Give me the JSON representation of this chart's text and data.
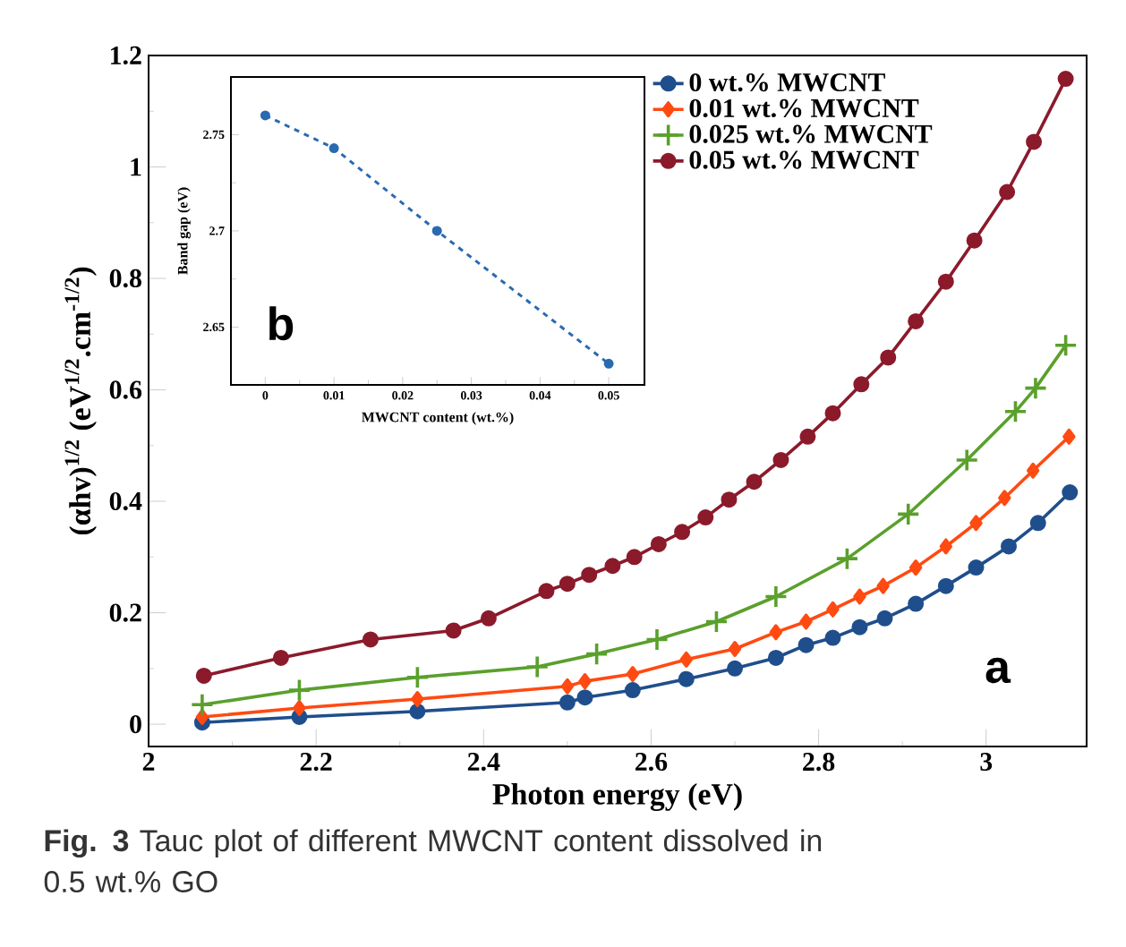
{
  "chart_data": [
    {
      "type": "line",
      "xlabel": "Photon energy (eV)",
      "ylabel": "(αhv)$^{1/2}$ (eV$^{1/2}$.cm$^{-1/2}$)",
      "xlim": [
        2,
        3.12
      ],
      "ylim": [
        -0.04,
        1.2
      ],
      "xticks": [
        2,
        2.2,
        2.4,
        2.6,
        2.8,
        3
      ],
      "yticks": [
        0,
        0.2,
        0.4,
        0.6,
        0.8,
        1,
        1.2
      ],
      "legend": "top right",
      "grid": false,
      "annotations": [
        "a",
        "**Fig. 3** Tauc plot of different MWCNT content dissolved in 0.5 wt.% GO"
      ],
      "series": [
        {
          "name": "0 wt.% MWCNT",
          "color": "#1f4e8c",
          "marker": "circle",
          "x": [
            2.064,
            2.18,
            2.321,
            2.5,
            2.521,
            2.578,
            2.642,
            2.7,
            2.749,
            2.785,
            2.817,
            2.849,
            2.879,
            2.916,
            2.952,
            2.988,
            3.027,
            3.062,
            3.1
          ],
          "values": [
            0.003,
            0.013,
            0.023,
            0.039,
            0.048,
            0.061,
            0.081,
            0.1,
            0.119,
            0.142,
            0.155,
            0.174,
            0.19,
            0.216,
            0.248,
            0.281,
            0.319,
            0.361,
            0.416
          ]
        },
        {
          "name": "0.01 wt.% MWCNT",
          "color": "#ff4a12",
          "marker": "diamond",
          "x": [
            2.064,
            2.18,
            2.321,
            2.5,
            2.521,
            2.578,
            2.642,
            2.7,
            2.749,
            2.785,
            2.817,
            2.849,
            2.877,
            2.916,
            2.952,
            2.988,
            3.022,
            3.056,
            3.099
          ],
          "values": [
            0.013,
            0.029,
            0.045,
            0.068,
            0.077,
            0.09,
            0.116,
            0.135,
            0.165,
            0.184,
            0.206,
            0.229,
            0.248,
            0.281,
            0.319,
            0.361,
            0.406,
            0.455,
            0.516
          ]
        },
        {
          "name": "0.025 wt.% MWCNT",
          "color": "#5aa02c",
          "marker": "cross",
          "x": [
            2.064,
            2.18,
            2.321,
            2.464,
            2.535,
            2.607,
            2.678,
            2.749,
            2.834,
            2.907,
            2.977,
            3.035,
            3.059,
            3.095
          ],
          "values": [
            0.035,
            0.061,
            0.084,
            0.103,
            0.126,
            0.152,
            0.184,
            0.229,
            0.297,
            0.377,
            0.474,
            0.561,
            0.603,
            0.68
          ]
        },
        {
          "name": "0.05 wt.% MWCNT",
          "color": "#8b1a2b",
          "marker": "circle",
          "x": [
            2.066,
            2.158,
            2.265,
            2.364,
            2.406,
            2.475,
            2.5,
            2.526,
            2.554,
            2.58,
            2.609,
            2.637,
            2.665,
            2.693,
            2.723,
            2.755,
            2.787,
            2.817,
            2.851,
            2.883,
            2.916,
            2.952,
            2.986,
            3.025,
            3.057,
            3.095
          ],
          "values": [
            0.087,
            0.119,
            0.152,
            0.168,
            0.19,
            0.239,
            0.252,
            0.268,
            0.284,
            0.3,
            0.323,
            0.345,
            0.371,
            0.403,
            0.435,
            0.474,
            0.516,
            0.558,
            0.61,
            0.658,
            0.723,
            0.794,
            0.868,
            0.955,
            1.045,
            1.158
          ]
        }
      ]
    },
    {
      "type": "line",
      "xlabel": "MWCNT content (wt.%)",
      "ylabel": "Band gap (eV)",
      "xlim": [
        -0.005,
        0.0552
      ],
      "ylim": [
        2.62,
        2.78
      ],
      "xticks": [
        0,
        0.01,
        0.02,
        0.03,
        0.04,
        0.05
      ],
      "yticks": [
        2.65,
        2.7,
        2.75
      ],
      "grid": false,
      "annotations": [
        "b"
      ],
      "series": [
        {
          "color": "#2a6ab0",
          "marker": "circle",
          "line_style": "dashed",
          "x": [
            0,
            0.01,
            0.025,
            0.05
          ],
          "values": [
            2.76,
            2.743,
            2.7,
            2.631
          ]
        }
      ]
    }
  ]
}
